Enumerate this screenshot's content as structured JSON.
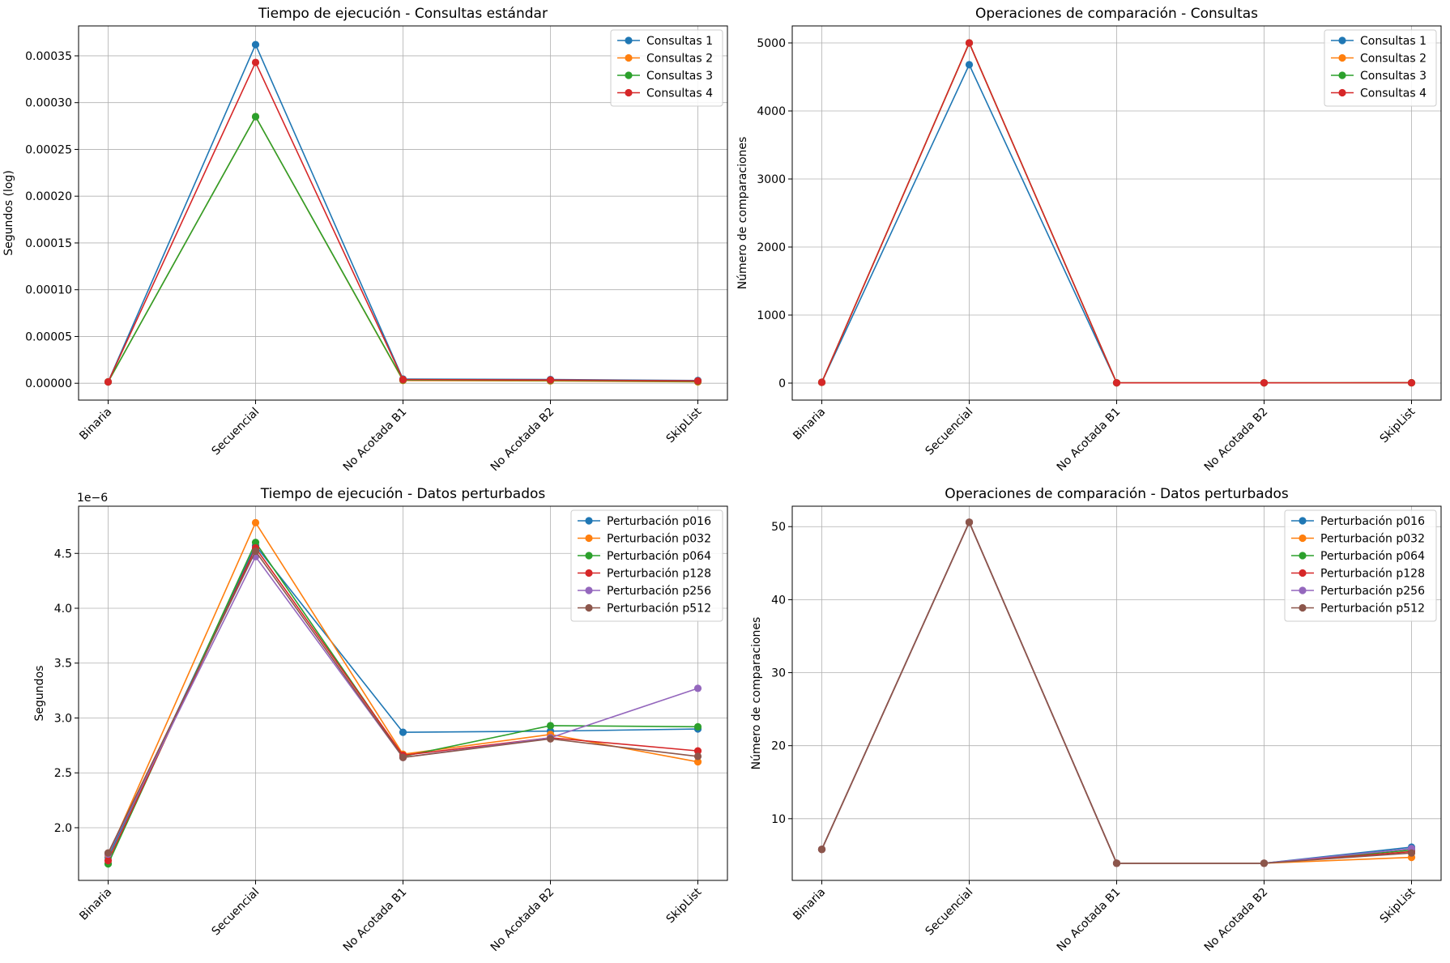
{
  "chart_data": [
    {
      "type": "line",
      "title": "Tiempo de ejecución - Consultas estándar",
      "xlabel": "",
      "ylabel": "Segundos (log)",
      "categories": [
        "Binaria",
        "Secuencial",
        "No Acotada B1",
        "No Acotada B2",
        "SkipList"
      ],
      "ylim": [
        -1.8e-05,
        0.000382
      ],
      "yticks": [
        0,
        5e-05,
        0.0001,
        0.00015,
        0.0002,
        0.00025,
        0.0003,
        0.00035
      ],
      "ytick_labels": [
        "0.00000",
        "0.00005",
        "0.00010",
        "0.00015",
        "0.00020",
        "0.00025",
        "0.00030",
        "0.00035"
      ],
      "y_offset_label": "",
      "grid": true,
      "legend": "top-right",
      "series": [
        {
          "name": "Consultas 1",
          "color": "#1f77b4",
          "values": [
            1.5e-06,
            0.000362,
            4.5e-06,
            4e-06,
            3e-06
          ]
        },
        {
          "name": "Consultas 2",
          "color": "#ff7f0e",
          "values": [
            1.5e-06,
            0.000285,
            3e-06,
            2.5e-06,
            1.5e-06
          ]
        },
        {
          "name": "Consultas 3",
          "color": "#2ca02c",
          "values": [
            1.5e-06,
            0.000285,
            3.5e-06,
            3e-06,
            2e-06
          ]
        },
        {
          "name": "Consultas 4",
          "color": "#d62728",
          "values": [
            1.5e-06,
            0.000343,
            4e-06,
            3.5e-06,
            2.5e-06
          ]
        }
      ]
    },
    {
      "type": "line",
      "title": "Operaciones de comparación - Consultas",
      "xlabel": "",
      "ylabel": "Número de comparaciones",
      "categories": [
        "Binaria",
        "Secuencial",
        "No Acotada B1",
        "No Acotada B2",
        "SkipList"
      ],
      "ylim": [
        -250,
        5250
      ],
      "yticks": [
        0,
        1000,
        2000,
        3000,
        4000,
        5000
      ],
      "ytick_labels": [
        "0",
        "1000",
        "2000",
        "3000",
        "4000",
        "5000"
      ],
      "y_offset_label": "",
      "grid": true,
      "legend": "top-right",
      "series": [
        {
          "name": "Consultas 1",
          "color": "#1f77b4",
          "values": [
            12,
            4680,
            4,
            4,
            5
          ]
        },
        {
          "name": "Consultas 2",
          "color": "#ff7f0e",
          "values": [
            12,
            5000,
            4,
            4,
            5
          ]
        },
        {
          "name": "Consultas 3",
          "color": "#2ca02c",
          "values": [
            12,
            5000,
            4,
            4,
            5
          ]
        },
        {
          "name": "Consultas 4",
          "color": "#d62728",
          "values": [
            12,
            5000,
            4,
            4,
            5
          ]
        }
      ]
    },
    {
      "type": "line",
      "title": "Tiempo de ejecución - Datos perturbados",
      "xlabel": "",
      "ylabel": "Segundos",
      "categories": [
        "Binaria",
        "Secuencial",
        "No Acotada B1",
        "No Acotada B2",
        "SkipList"
      ],
      "ylim": [
        1.52,
        4.93
      ],
      "yticks": [
        2.0,
        2.5,
        3.0,
        3.5,
        4.0,
        4.5
      ],
      "ytick_labels": [
        "2.0",
        "2.5",
        "3.0",
        "3.5",
        "4.0",
        "4.5"
      ],
      "y_offset_label": "1e−6",
      "grid": true,
      "legend": "top-right",
      "series": [
        {
          "name": "Perturbación p016",
          "color": "#1f77b4",
          "values": [
            1.73,
            4.57,
            2.87,
            2.88,
            2.9
          ]
        },
        {
          "name": "Perturbación p032",
          "color": "#ff7f0e",
          "values": [
            1.75,
            4.78,
            2.67,
            2.85,
            2.6
          ]
        },
        {
          "name": "Perturbación p064",
          "color": "#2ca02c",
          "values": [
            1.67,
            4.6,
            2.65,
            2.93,
            2.92
          ]
        },
        {
          "name": "Perturbación p128",
          "color": "#d62728",
          "values": [
            1.7,
            4.55,
            2.66,
            2.82,
            2.7
          ]
        },
        {
          "name": "Perturbación p256",
          "color": "#9467bd",
          "values": [
            1.76,
            4.47,
            2.64,
            2.82,
            3.27
          ]
        },
        {
          "name": "Perturbación p512",
          "color": "#8c564b",
          "values": [
            1.77,
            4.52,
            2.64,
            2.81,
            2.65
          ]
        }
      ]
    },
    {
      "type": "line",
      "title": "Operaciones de comparación - Datos perturbados",
      "xlabel": "",
      "ylabel": "Número de comparaciones",
      "categories": [
        "Binaria",
        "Secuencial",
        "No Acotada B1",
        "No Acotada B2",
        "SkipList"
      ],
      "ylim": [
        1.55,
        52.8
      ],
      "yticks": [
        10,
        20,
        30,
        40,
        50
      ],
      "ytick_labels": [
        "10",
        "20",
        "30",
        "40",
        "50"
      ],
      "y_offset_label": "",
      "grid": true,
      "legend": "top-right",
      "series": [
        {
          "name": "Perturbación p016",
          "color": "#1f77b4",
          "values": [
            5.8,
            50.6,
            3.9,
            3.9,
            6.1
          ]
        },
        {
          "name": "Perturbación p032",
          "color": "#ff7f0e",
          "values": [
            5.8,
            50.6,
            3.9,
            3.9,
            4.7
          ]
        },
        {
          "name": "Perturbación p064",
          "color": "#2ca02c",
          "values": [
            5.8,
            50.6,
            3.9,
            3.9,
            5.7
          ]
        },
        {
          "name": "Perturbación p128",
          "color": "#d62728",
          "values": [
            5.8,
            50.6,
            3.9,
            3.9,
            5.5
          ]
        },
        {
          "name": "Perturbación p256",
          "color": "#9467bd",
          "values": [
            5.8,
            50.6,
            3.9,
            3.9,
            5.9
          ]
        },
        {
          "name": "Perturbación p512",
          "color": "#8c564b",
          "values": [
            5.8,
            50.6,
            3.9,
            3.9,
            5.3
          ]
        }
      ]
    }
  ]
}
